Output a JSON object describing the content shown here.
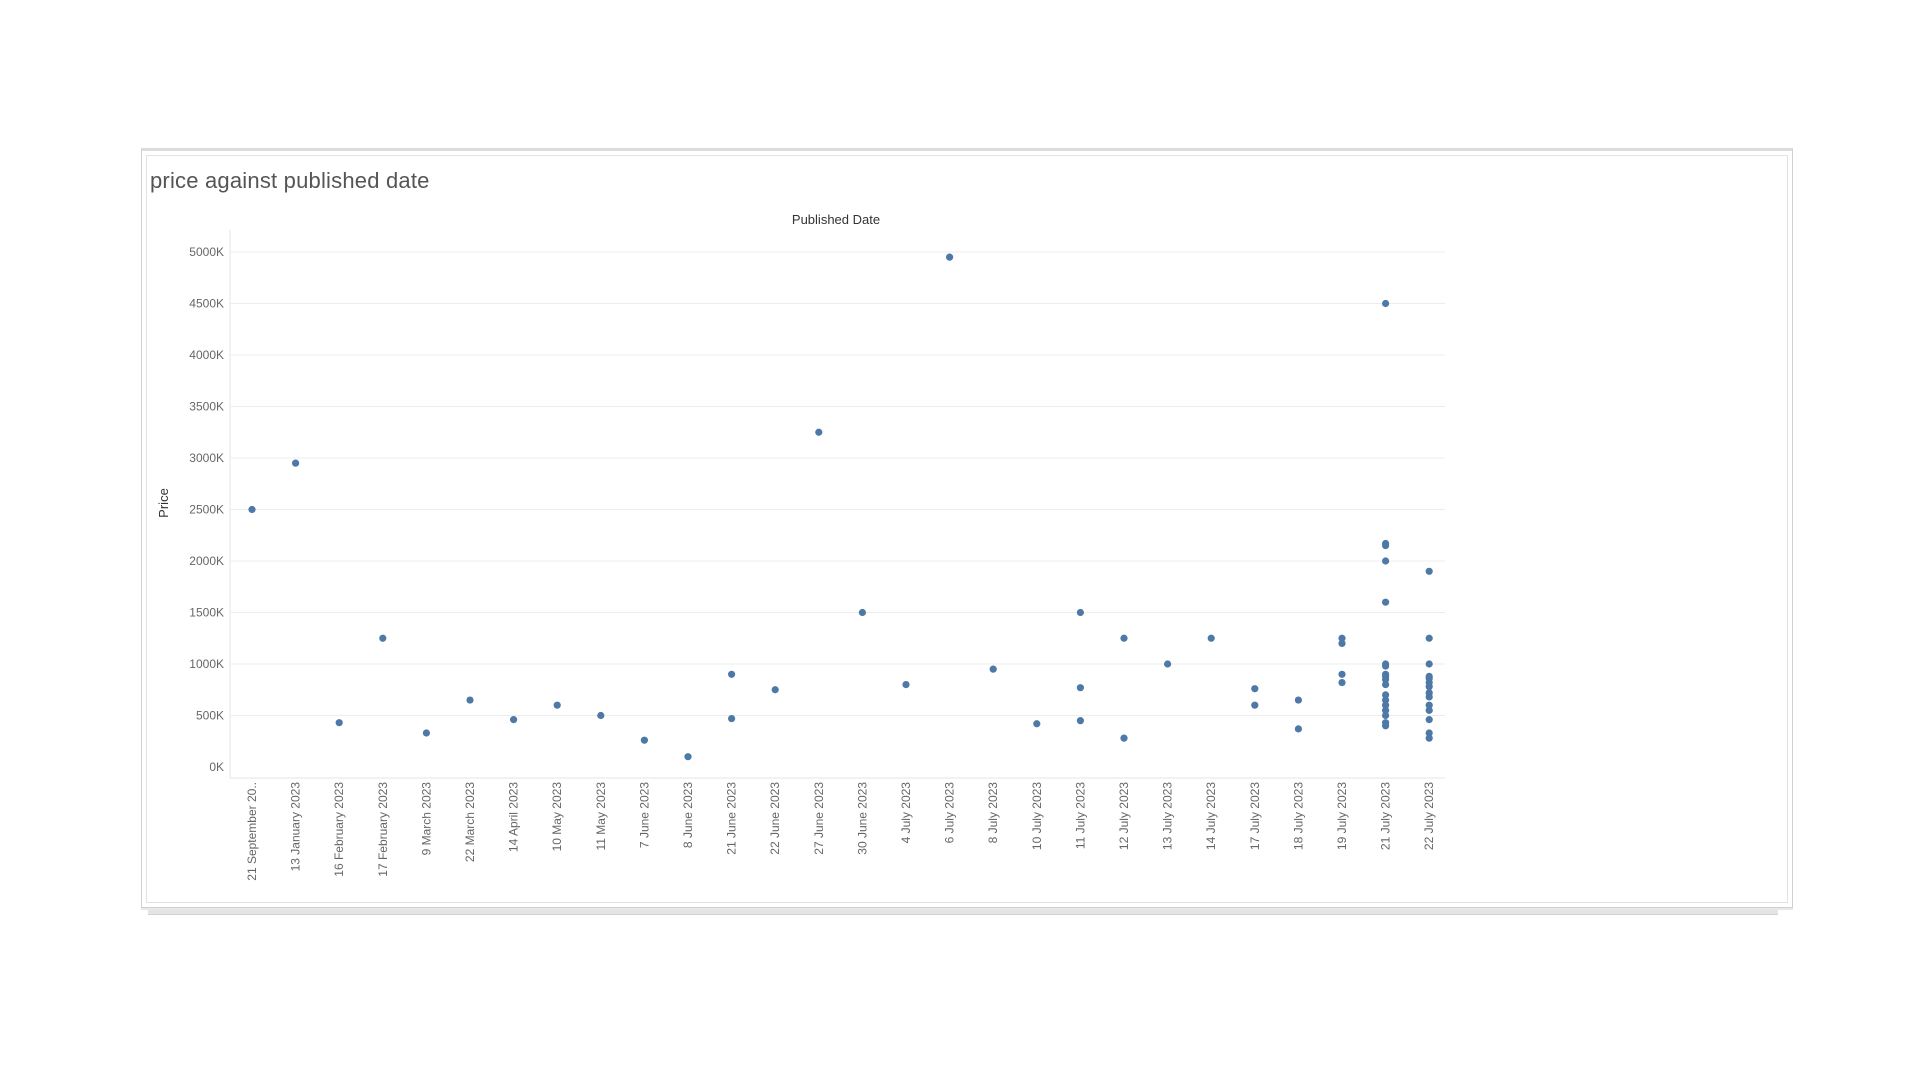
{
  "title": "price against published date",
  "chart_data": {
    "type": "scatter",
    "title": "price against published date",
    "xlabel": "Published Date",
    "ylabel": "Price",
    "ylim": [
      0,
      5000000
    ],
    "y_ticks": [
      {
        "value": 0,
        "label": "0K"
      },
      {
        "value": 500000,
        "label": "500K"
      },
      {
        "value": 1000000,
        "label": "1000K"
      },
      {
        "value": 1500000,
        "label": "1500K"
      },
      {
        "value": 2000000,
        "label": "2000K"
      },
      {
        "value": 2500000,
        "label": "2500K"
      },
      {
        "value": 3000000,
        "label": "3000K"
      },
      {
        "value": 3500000,
        "label": "3500K"
      },
      {
        "value": 4000000,
        "label": "4000K"
      },
      {
        "value": 4500000,
        "label": "4500K"
      },
      {
        "value": 5000000,
        "label": "5000K"
      }
    ],
    "grid": true,
    "color": "#4e79a7",
    "categories": [
      "21 September 20..",
      "13 January 2023",
      "16 February 2023",
      "17 February 2023",
      "9 March 2023",
      "22 March 2023",
      "14 April 2023",
      "10 May 2023",
      "11 May 2023",
      "7 June 2023",
      "8 June 2023",
      "21 June 2023",
      "22 June 2023",
      "27 June 2023",
      "30 June 2023",
      "4 July 2023",
      "6 July 2023",
      "8 July 2023",
      "10 July 2023",
      "11 July 2023",
      "12 July 2023",
      "13 July 2023",
      "14 July 2023",
      "17 July 2023",
      "18 July 2023",
      "19 July 2023",
      "21 July 2023",
      "22 July 2023"
    ],
    "points": [
      {
        "x": "21 September 20..",
        "y": [
          2500000
        ]
      },
      {
        "x": "13 January 2023",
        "y": [
          2950000
        ]
      },
      {
        "x": "16 February 2023",
        "y": [
          430000
        ]
      },
      {
        "x": "17 February 2023",
        "y": [
          1250000
        ]
      },
      {
        "x": "9 March 2023",
        "y": [
          330000
        ]
      },
      {
        "x": "22 March 2023",
        "y": [
          650000
        ]
      },
      {
        "x": "14 April 2023",
        "y": [
          460000
        ]
      },
      {
        "x": "10 May 2023",
        "y": [
          600000
        ]
      },
      {
        "x": "11 May 2023",
        "y": [
          500000
        ]
      },
      {
        "x": "7 June 2023",
        "y": [
          260000
        ]
      },
      {
        "x": "8 June 2023",
        "y": [
          100000
        ]
      },
      {
        "x": "21 June 2023",
        "y": [
          470000,
          900000
        ]
      },
      {
        "x": "22 June 2023",
        "y": [
          750000
        ]
      },
      {
        "x": "27 June 2023",
        "y": [
          3250000
        ]
      },
      {
        "x": "30 June 2023",
        "y": [
          1500000
        ]
      },
      {
        "x": "4 July 2023",
        "y": [
          800000
        ]
      },
      {
        "x": "6 July 2023",
        "y": [
          4950000
        ]
      },
      {
        "x": "8 July 2023",
        "y": [
          950000
        ]
      },
      {
        "x": "10 July 2023",
        "y": [
          420000
        ]
      },
      {
        "x": "11 July 2023",
        "y": [
          450000,
          770000,
          1500000
        ]
      },
      {
        "x": "12 July 2023",
        "y": [
          280000,
          1250000
        ]
      },
      {
        "x": "13 July 2023",
        "y": [
          1000000
        ]
      },
      {
        "x": "14 July 2023",
        "y": [
          1250000
        ]
      },
      {
        "x": "17 July 2023",
        "y": [
          600000,
          760000
        ]
      },
      {
        "x": "18 July 2023",
        "y": [
          370000,
          650000
        ]
      },
      {
        "x": "19 July 2023",
        "y": [
          820000,
          900000,
          1200000,
          1250000
        ]
      },
      {
        "x": "21 July 2023",
        "y": [
          400000,
          430000,
          500000,
          550000,
          600000,
          650000,
          700000,
          800000,
          850000,
          880000,
          900000,
          980000,
          1000000,
          1600000,
          2000000,
          2150000,
          2170000,
          4500000
        ]
      },
      {
        "x": "22 July 2023",
        "y": [
          280000,
          330000,
          460000,
          550000,
          600000,
          680000,
          720000,
          780000,
          820000,
          860000,
          880000,
          1000000,
          1250000,
          1900000
        ]
      }
    ]
  }
}
